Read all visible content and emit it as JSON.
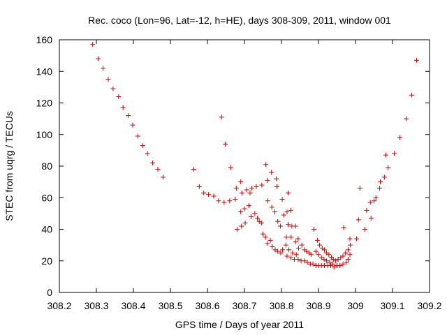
{
  "chart_data": {
    "type": "scatter",
    "title": "Rec. coco (Lon=96, Lat=-12, h=HE), days 308-309, 2011, window 001",
    "xlabel": "GPS time / Days of year 2011",
    "ylabel": "STEC from uqrg / TECUs",
    "xlim": [
      308.2,
      309.2
    ],
    "ylim": [
      0,
      160
    ],
    "xticks": [
      "308.2",
      "308.3",
      "308.4",
      "308.5",
      "308.6",
      "308.7",
      "308.8",
      "308.9",
      "309",
      "309.1",
      "309.2"
    ],
    "yticks": [
      "0",
      "20",
      "40",
      "60",
      "80",
      "100",
      "120",
      "140",
      "160"
    ],
    "grid": false,
    "marker": "+",
    "marker_color": "#cc0000",
    "series": [
      {
        "points": [
          [
            308.29,
            157
          ],
          [
            308.305,
            148
          ],
          [
            308.318,
            142
          ],
          [
            308.332,
            135
          ],
          [
            308.345,
            129
          ],
          [
            308.36,
            124
          ],
          [
            308.372,
            117
          ],
          [
            308.386,
            112
          ],
          [
            308.398,
            106
          ],
          [
            308.412,
            99
          ],
          [
            308.425,
            93
          ],
          [
            308.438,
            88
          ],
          [
            308.452,
            82
          ],
          [
            308.466,
            78
          ],
          [
            308.48,
            73
          ],
          [
            308.563,
            78
          ],
          [
            308.578,
            67
          ],
          [
            308.59,
            63
          ],
          [
            308.603,
            62
          ],
          [
            308.617,
            61
          ],
          [
            308.638,
            111
          ],
          [
            308.648,
            94
          ],
          [
            308.663,
            79
          ],
          [
            308.63,
            58
          ],
          [
            308.645,
            57
          ],
          [
            308.66,
            58
          ],
          [
            308.675,
            59
          ],
          [
            308.678,
            66
          ],
          [
            308.69,
            70
          ],
          [
            308.693,
            63
          ],
          [
            308.706,
            65
          ],
          [
            308.715,
            63
          ],
          [
            308.72,
            66
          ],
          [
            308.732,
            67
          ],
          [
            308.747,
            68
          ],
          [
            308.758,
            81
          ],
          [
            308.762,
            71
          ],
          [
            308.773,
            76
          ],
          [
            308.786,
            72
          ],
          [
            308.788,
            67
          ],
          [
            308.802,
            59
          ],
          [
            308.818,
            63
          ],
          [
            308.68,
            40
          ],
          [
            308.692,
            42
          ],
          [
            308.702,
            44
          ],
          [
            308.69,
            51
          ],
          [
            308.7,
            53
          ],
          [
            308.712,
            55
          ],
          [
            308.718,
            48
          ],
          [
            308.728,
            50
          ],
          [
            308.735,
            47
          ],
          [
            308.74,
            45
          ],
          [
            308.746,
            44
          ],
          [
            308.75,
            37
          ],
          [
            308.757,
            35
          ],
          [
            308.762,
            31
          ],
          [
            308.77,
            33
          ],
          [
            308.775,
            29
          ],
          [
            308.783,
            27
          ],
          [
            308.79,
            26
          ],
          [
            308.798,
            25
          ],
          [
            308.803,
            27
          ],
          [
            308.763,
            58
          ],
          [
            308.774,
            54
          ],
          [
            308.782,
            51
          ],
          [
            308.79,
            45
          ],
          [
            308.797,
            42
          ],
          [
            308.806,
            49
          ],
          [
            308.815,
            51
          ],
          [
            308.825,
            52
          ],
          [
            308.818,
            43
          ],
          [
            308.828,
            42
          ],
          [
            308.838,
            42
          ],
          [
            308.813,
            35
          ],
          [
            308.826,
            35
          ],
          [
            308.838,
            32
          ],
          [
            308.845,
            34
          ],
          [
            308.812,
            30
          ],
          [
            308.82,
            27
          ],
          [
            308.83,
            25
          ],
          [
            308.84,
            24
          ],
          [
            308.846,
            28
          ],
          [
            308.855,
            30
          ],
          [
            308.862,
            27
          ],
          [
            308.868,
            26
          ],
          [
            308.875,
            25
          ],
          [
            308.88,
            24
          ],
          [
            308.815,
            23
          ],
          [
            308.825,
            22
          ],
          [
            308.835,
            21
          ],
          [
            308.845,
            21
          ],
          [
            308.853,
            20
          ],
          [
            308.862,
            20
          ],
          [
            308.87,
            19
          ],
          [
            308.878,
            18
          ],
          [
            308.885,
            18
          ],
          [
            308.893,
            17
          ],
          [
            308.9,
            17
          ],
          [
            308.908,
            17
          ],
          [
            308.916,
            17
          ],
          [
            308.925,
            17
          ],
          [
            308.933,
            17
          ],
          [
            308.942,
            16
          ],
          [
            308.95,
            17
          ],
          [
            308.958,
            17
          ],
          [
            308.966,
            18
          ],
          [
            308.975,
            19
          ],
          [
            308.98,
            21
          ],
          [
            308.985,
            24
          ],
          [
            308.888,
            40
          ],
          [
            308.897,
            33
          ],
          [
            308.903,
            30
          ],
          [
            308.91,
            28
          ],
          [
            308.916,
            27
          ],
          [
            308.922,
            25
          ],
          [
            308.928,
            24
          ],
          [
            308.935,
            22
          ],
          [
            308.94,
            21
          ],
          [
            308.946,
            20
          ],
          [
            308.953,
            21
          ],
          [
            308.96,
            22
          ],
          [
            308.966,
            23
          ],
          [
            308.973,
            25
          ],
          [
            308.98,
            27
          ],
          [
            308.986,
            30
          ],
          [
            308.893,
            26
          ],
          [
            308.9,
            24
          ],
          [
            308.908,
            22
          ],
          [
            308.915,
            21
          ],
          [
            308.922,
            20
          ],
          [
            308.93,
            19
          ],
          [
            308.938,
            18
          ],
          [
            308.968,
            41
          ],
          [
            308.985,
            34
          ],
          [
            309.003,
            34
          ],
          [
            309.008,
            46
          ],
          [
            309.012,
            66
          ],
          [
            309.025,
            40
          ],
          [
            309.03,
            52
          ],
          [
            309.04,
            57
          ],
          [
            309.042,
            47
          ],
          [
            309.05,
            58
          ],
          [
            309.055,
            60
          ],
          [
            309.065,
            66
          ],
          [
            309.067,
            70
          ],
          [
            309.078,
            73
          ],
          [
            309.082,
            87
          ],
          [
            309.088,
            79
          ],
          [
            309.105,
            88
          ],
          [
            309.12,
            98
          ],
          [
            309.137,
            110
          ],
          [
            309.152,
            125
          ],
          [
            309.165,
            147
          ]
        ]
      }
    ]
  }
}
